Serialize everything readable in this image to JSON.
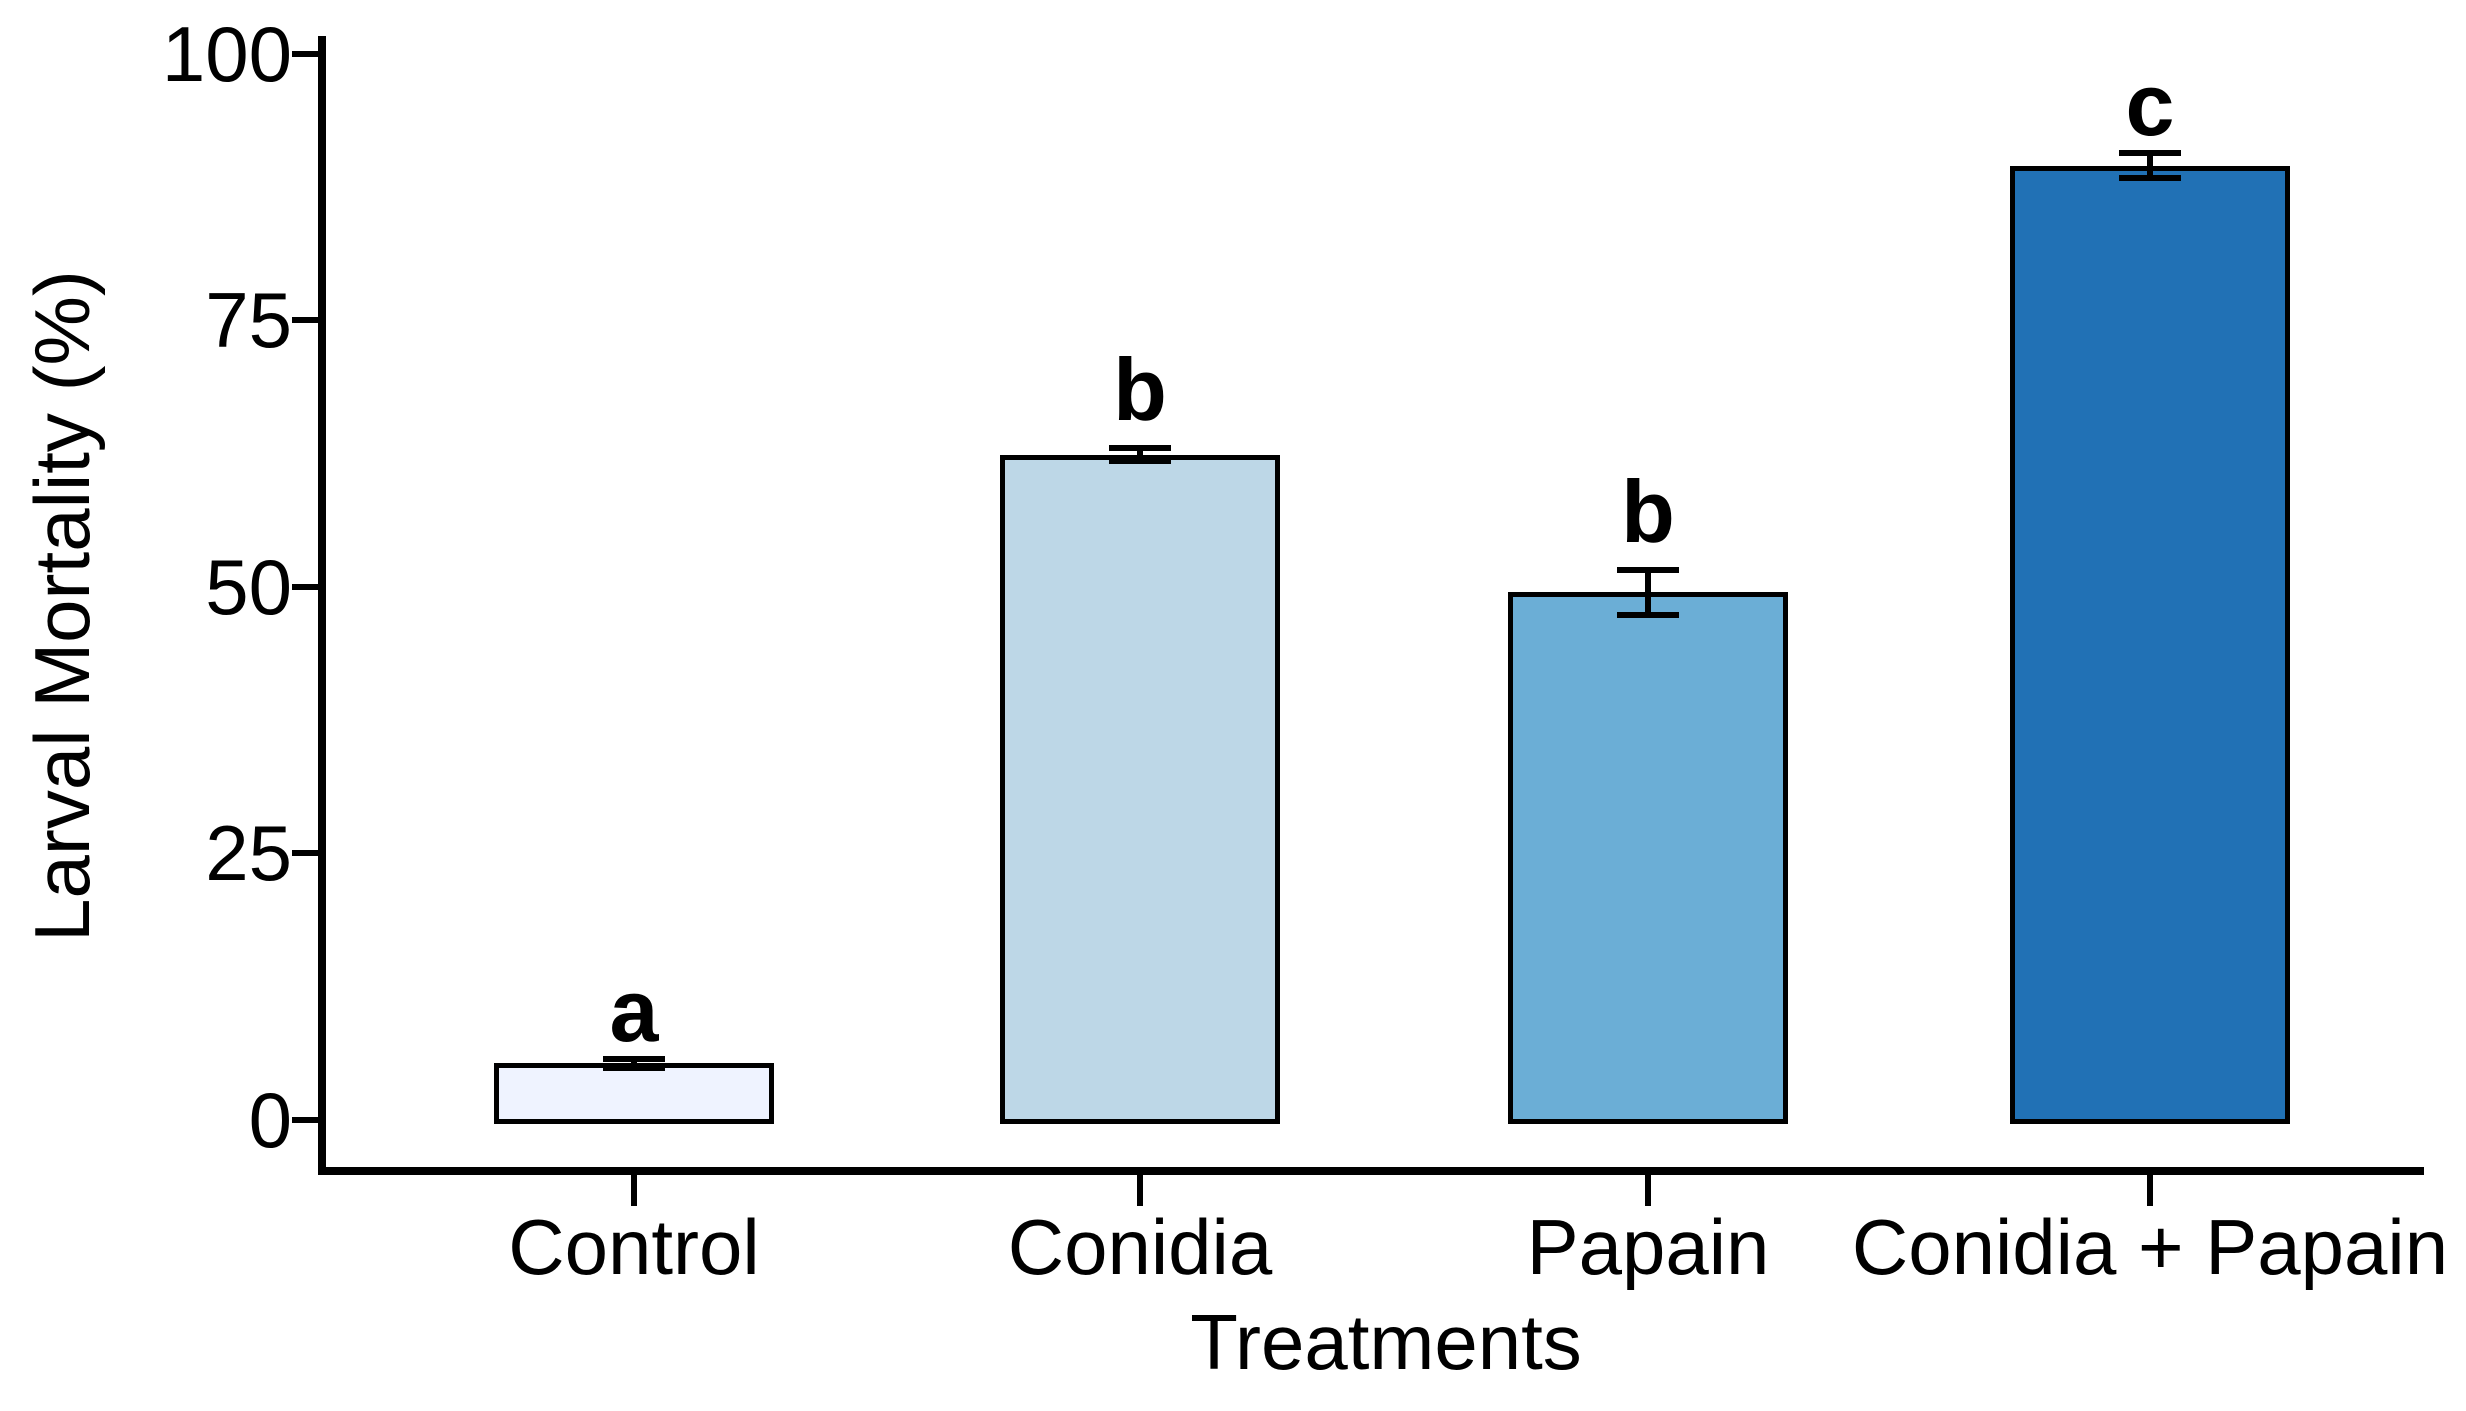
{
  "figure": {
    "background": "#ffffff",
    "axis_color": "#000000",
    "text_color": "#000000"
  },
  "chart_data": {
    "type": "bar",
    "title": "",
    "xlabel": "Treatments",
    "ylabel": "Larval Mortality (%)",
    "categories": [
      "Control",
      "Conidia",
      "Papain",
      "Conidia + Papain"
    ],
    "values": [
      5.3,
      62.4,
      49.5,
      89.5
    ],
    "errors": [
      0.4,
      0.6,
      2.1,
      1.2
    ],
    "sig_letters": [
      "a",
      "b",
      "b",
      "c"
    ],
    "bar_colors": [
      "#EFF3FF",
      "#BDD7E7",
      "#6BAED6",
      "#2171B5"
    ],
    "bar_border_color": "#000000",
    "ylim": [
      0,
      100
    ],
    "yticks": [
      0,
      25,
      50,
      75,
      100
    ],
    "grid": false,
    "legend": "none"
  }
}
